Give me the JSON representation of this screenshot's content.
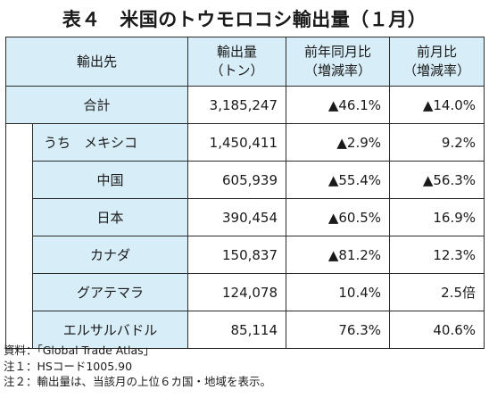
{
  "title": "表４　米国のトウモロコシ輸出量（１月）",
  "table": {
    "headers": [
      {
        "line1": "輸出先",
        "line2": ""
      },
      {
        "line1": "輸出量",
        "line2": "（トン）"
      },
      {
        "line1": "前年同月比",
        "line2": "（増減率）"
      },
      {
        "line1": "前月比",
        "line2": "（増減率）"
      }
    ],
    "rows": [
      {
        "name": "合計",
        "volume": "3,185,247",
        "yoy": "▲46.1%",
        "mom": "▲14.0%"
      },
      {
        "name": "うち　メキシコ",
        "volume": "1,450,411",
        "yoy": "▲2.9%",
        "mom": "9.2%"
      },
      {
        "name": "中国",
        "volume": "605,939",
        "yoy": "▲55.4%",
        "mom": "▲56.3%"
      },
      {
        "name": "日本",
        "volume": "390,454",
        "yoy": "▲60.5%",
        "mom": "16.9%"
      },
      {
        "name": "カナダ",
        "volume": "150,837",
        "yoy": "▲81.2%",
        "mom": "12.3%"
      },
      {
        "name": "グアテマラ",
        "volume": "124,078",
        "yoy": "10.4%",
        "mom": "2.5倍"
      },
      {
        "name": "エルサルバドル",
        "volume": "85,114",
        "yoy": "76.3%",
        "mom": "40.6%"
      }
    ]
  },
  "notes": [
    "資料：「Global Trade Atlas」",
    "注１：HSコード1005.90",
    "注２：輸出量は、当該月の上位６カ国・地域を表示。"
  ],
  "colors": {
    "header_fill": "#d7edf7",
    "border": "#2b2b2b"
  }
}
